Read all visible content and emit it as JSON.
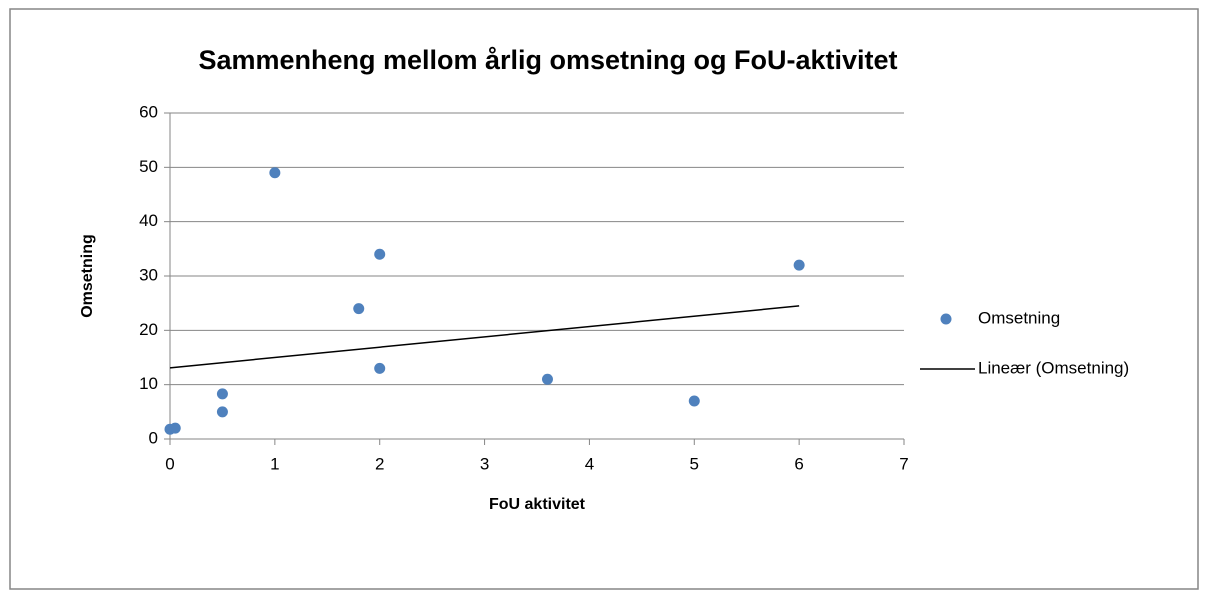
{
  "chart_data": {
    "type": "scatter",
    "title": "Sammenheng mellom årlig omsetning og FoU-aktivitet",
    "xlabel": "FoU aktivitet",
    "ylabel": "Omsetning",
    "series": [
      {
        "name": "Omsetning",
        "color": "#4f81bd",
        "type": "scatter",
        "x": [
          0,
          0.05,
          0.5,
          0.5,
          1,
          1.8,
          2,
          2,
          3.6,
          5,
          6
        ],
        "values": [
          1.8,
          2,
          8.3,
          5,
          49,
          24,
          34,
          13,
          11,
          7,
          32
        ]
      },
      {
        "name": "Lineær (Omsetning)",
        "color": "#000000",
        "type": "line",
        "x": [
          0,
          6
        ],
        "values": [
          13.1,
          24.5
        ]
      }
    ],
    "xlim": [
      0,
      7
    ],
    "xticks": [
      0,
      1,
      2,
      3,
      4,
      5,
      6,
      7
    ],
    "ylim": [
      0,
      60
    ],
    "yticks": [
      0,
      10,
      20,
      30,
      40,
      50,
      60
    ],
    "grid": true,
    "legend": "right"
  }
}
